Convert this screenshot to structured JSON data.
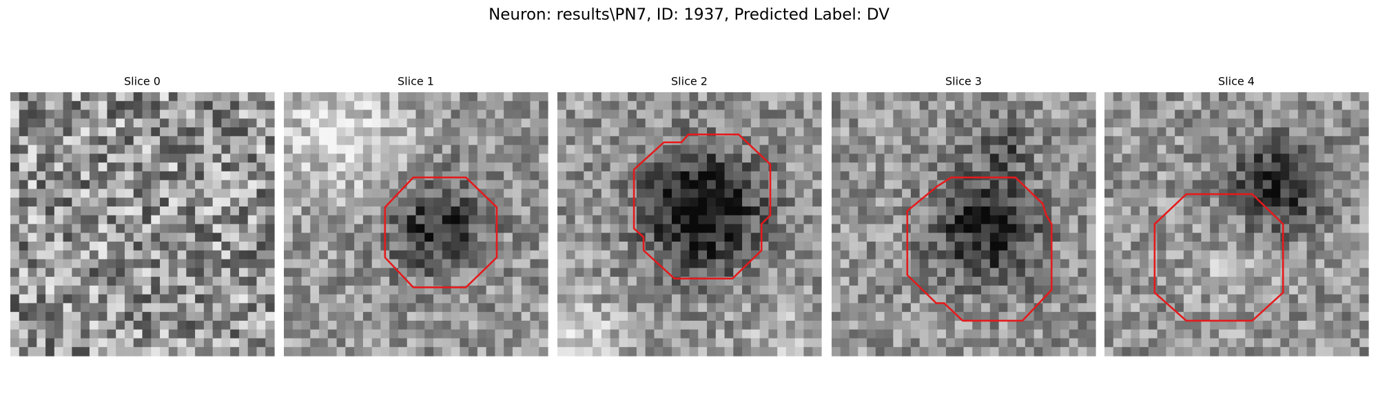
{
  "figure": {
    "title": "Neuron: results\\PN7, ID: 1937, Predicted Label: DV",
    "panels": [
      {
        "title": "Slice 0"
      },
      {
        "title": "Slice 1"
      },
      {
        "title": "Slice 2"
      },
      {
        "title": "Slice 3"
      },
      {
        "title": "Slice 4"
      }
    ]
  }
}
